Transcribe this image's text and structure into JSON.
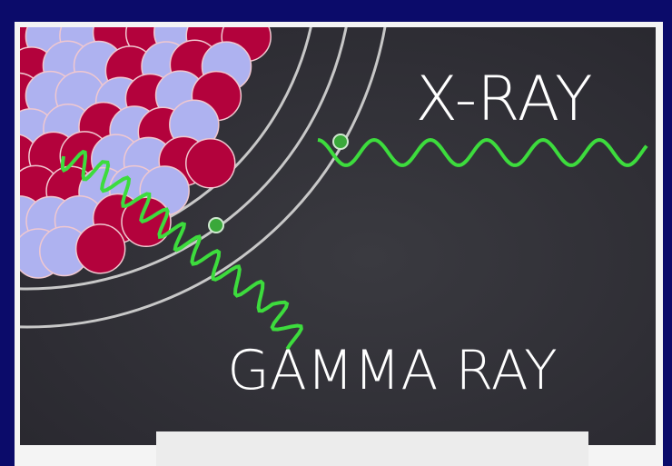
{
  "labels": {
    "xray": "X-RAY",
    "gamma": "GAMMA RAY"
  }
}
